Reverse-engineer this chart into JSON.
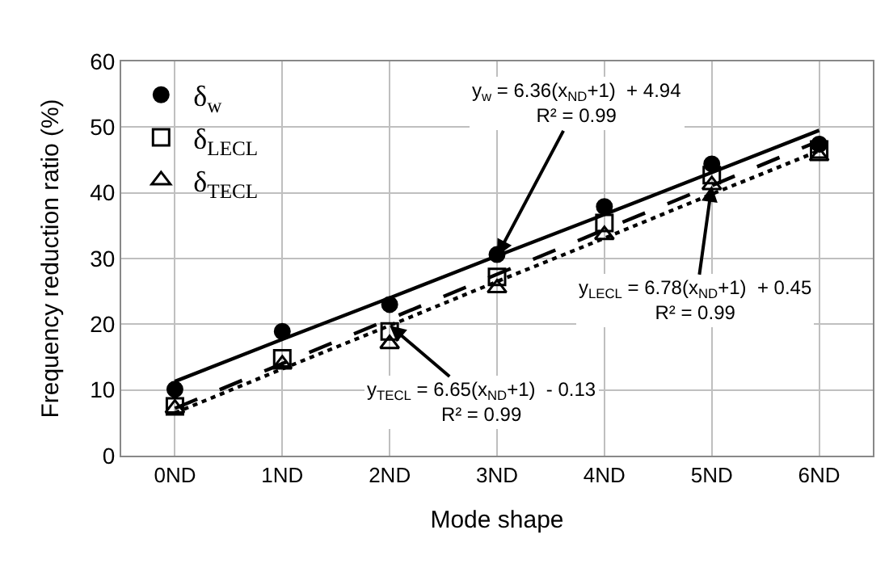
{
  "chart_data": {
    "type": "scatter",
    "xlabel": "Mode shape",
    "ylabel": "Frequency reduction ratio (%)",
    "categories": [
      "0ND",
      "1ND",
      "2ND",
      "3ND",
      "4ND",
      "5ND",
      "6ND"
    ],
    "ylim": [
      0,
      60
    ],
    "yticks": [
      0,
      10,
      20,
      30,
      40,
      50,
      60
    ],
    "grid": true,
    "legend": "top left",
    "series": [
      {
        "name": "δ$_{w}$",
        "color": "#000000",
        "marker": "circle",
        "values": [
          10.1,
          18.9,
          23.0,
          30.6,
          37.9,
          44.4,
          47.4
        ]
      },
      {
        "name": "δ$_{LECL}$",
        "color": "#000000",
        "marker": "square",
        "values": [
          7.5,
          14.8,
          18.9,
          27.2,
          35.4,
          42.7,
          46.6
        ]
      },
      {
        "name": "δ$_{TECL}$",
        "color": "#000000",
        "marker": "triangle",
        "values": [
          7.2,
          13.9,
          17.0,
          25.5,
          33.6,
          41.2,
          45.6
        ]
      },
      {
        "type": "line",
        "color": "#000000",
        "line_style": "solid",
        "values": [
          11.3,
          17.7,
          24.0,
          30.4,
          36.7,
          43.1,
          49.5
        ]
      },
      {
        "type": "line",
        "color": "#000000",
        "line_style": "dashed",
        "values": [
          7.2,
          14.0,
          20.8,
          27.6,
          34.4,
          41.1,
          47.9
        ]
      },
      {
        "type": "line",
        "color": "#000000",
        "line_style": "dotted",
        "values": [
          6.5,
          13.2,
          19.8,
          26.5,
          33.1,
          39.8,
          46.4
        ]
      }
    ],
    "annotations": [
      {
        "text": "y$_{w}$ = 6.36(x$_{ND}$+1)  + 4.94\nR² = 0.99",
        "x": "3ND",
        "y": 30.4
      },
      {
        "text": "y$_{LECL}$ = 6.78(x$_{ND}$+1)  + 0.45\nR² = 0.99",
        "x": "5ND",
        "y": 41.1
      },
      {
        "text": "y$_{TECL}$ = 6.65(x$_{ND}$+1)  - 0.13\nR² = 0.99",
        "x": "2ND",
        "y": 19.8
      }
    ]
  }
}
